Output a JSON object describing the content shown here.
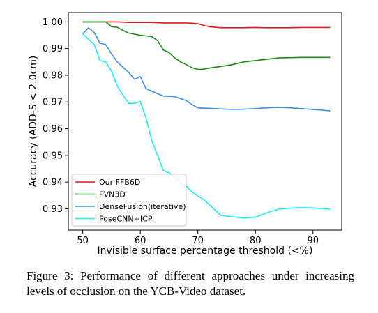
{
  "caption": "Figure 3: Performance of different approaches under increasing levels of occlusion on the YCB-Video dataset.",
  "chart_data": {
    "type": "line",
    "xlabel": "Invisible surface percentage threshold (<%)",
    "ylabel": "Accuracy (ADD-S < 2.0cm)",
    "xlim": [
      47.5,
      95
    ],
    "ylim": [
      0.922,
      1.0035
    ],
    "xticks": [
      50,
      60,
      70,
      80,
      90
    ],
    "yticks": [
      0.93,
      0.94,
      0.95,
      0.96,
      0.97,
      0.98,
      0.99,
      1.0
    ],
    "grid": false,
    "legend_position": "lower-left",
    "series": [
      {
        "name": "Our FFB6D",
        "color": "#e31a1c",
        "x": [
          50,
          52,
          54,
          56,
          58,
          60,
          62,
          64,
          66,
          68,
          69,
          70,
          71,
          72,
          73,
          74,
          75,
          76,
          78,
          80,
          82,
          84,
          86,
          88,
          90,
          92,
          93
        ],
        "y": [
          1.0,
          1.0,
          1.0,
          1.0,
          0.9998,
          0.9998,
          0.9998,
          0.9996,
          0.9996,
          0.9996,
          0.9995,
          0.9993,
          0.9987,
          0.9982,
          0.998,
          0.9978,
          0.9978,
          0.9978,
          0.9978,
          0.9979,
          0.9978,
          0.9978,
          0.9978,
          0.9979,
          0.9979,
          0.9979,
          0.9979
        ]
      },
      {
        "name": "PVN3D",
        "color": "#1a8a1a",
        "x": [
          50,
          52,
          54,
          55,
          56,
          57,
          58,
          60,
          62,
          63,
          64,
          65,
          66,
          67,
          68,
          69,
          70,
          71,
          72,
          74,
          76,
          78,
          80,
          82,
          84,
          86,
          88,
          90,
          93
        ],
        "y": [
          1.0,
          1.0,
          1.0,
          0.9982,
          0.998,
          0.9968,
          0.9958,
          0.995,
          0.9945,
          0.993,
          0.9895,
          0.9885,
          0.9865,
          0.985,
          0.984,
          0.9828,
          0.9822,
          0.9823,
          0.9827,
          0.9833,
          0.984,
          0.985,
          0.9855,
          0.986,
          0.9865,
          0.9866,
          0.9867,
          0.9867,
          0.9867
        ]
      },
      {
        "name": "DenseFusion(iterative)",
        "color": "#3b8fe8",
        "x": [
          50,
          51,
          52,
          53,
          54,
          55,
          56,
          57,
          58,
          59,
          60,
          61,
          62,
          64,
          66,
          68,
          69,
          70,
          72,
          74,
          76,
          78,
          80,
          82,
          84,
          86,
          88,
          90,
          93
        ],
        "y": [
          0.9955,
          0.9978,
          0.996,
          0.992,
          0.9915,
          0.988,
          0.985,
          0.983,
          0.981,
          0.9785,
          0.9795,
          0.975,
          0.974,
          0.9722,
          0.972,
          0.9705,
          0.969,
          0.9678,
          0.9676,
          0.9674,
          0.9672,
          0.9673,
          0.9675,
          0.9678,
          0.968,
          0.9678,
          0.9675,
          0.9672,
          0.9667
        ]
      },
      {
        "name": "PoseCNN+ICP",
        "color": "#1cf0f0",
        "x": [
          50,
          51,
          52,
          53,
          54,
          55,
          56,
          57,
          58,
          59,
          60,
          61,
          62,
          63,
          64,
          65,
          66,
          67,
          68,
          69,
          70,
          71,
          72,
          73,
          74,
          76,
          78,
          80,
          82,
          84,
          86,
          88,
          90,
          93
        ],
        "y": [
          0.9955,
          0.9935,
          0.9915,
          0.9855,
          0.985,
          0.9815,
          0.976,
          0.9725,
          0.9695,
          0.9695,
          0.9702,
          0.964,
          0.9555,
          0.95,
          0.9443,
          0.9435,
          0.9418,
          0.9397,
          0.9385,
          0.9362,
          0.9348,
          0.9335,
          0.9315,
          0.9295,
          0.9275,
          0.927,
          0.9265,
          0.9268,
          0.9285,
          0.9298,
          0.9302,
          0.9304,
          0.9303,
          0.9298
        ]
      }
    ]
  }
}
